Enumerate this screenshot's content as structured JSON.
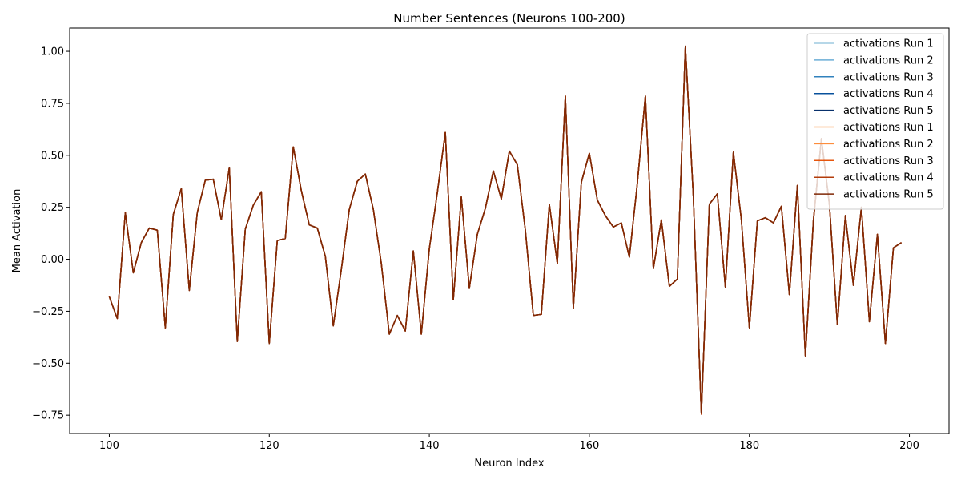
{
  "chart_data": {
    "type": "line",
    "title": "Number Sentences (Neurons 100-200)",
    "xlabel": "Neuron Index",
    "ylabel": "Mean Activation",
    "xlim": [
      95.05,
      204.95
    ],
    "ylim": [
      -0.838,
      1.112
    ],
    "xticks": [
      100,
      120,
      140,
      160,
      180,
      200
    ],
    "yticks": [
      -0.75,
      -0.5,
      -0.25,
      0.0,
      0.25,
      0.5,
      0.75,
      1.0
    ],
    "ytick_labels": [
      "−0.75",
      "−0.50",
      "−0.25",
      "0.00",
      "0.25",
      "0.50",
      "0.75",
      "1.00"
    ],
    "grid": false,
    "legend_position": "top-right",
    "x": [
      100,
      101,
      102,
      103,
      104,
      105,
      106,
      107,
      108,
      109,
      110,
      111,
      112,
      113,
      114,
      115,
      116,
      117,
      118,
      119,
      120,
      121,
      122,
      123,
      124,
      125,
      126,
      127,
      128,
      129,
      130,
      131,
      132,
      133,
      134,
      135,
      136,
      137,
      138,
      139,
      140,
      141,
      142,
      143,
      144,
      145,
      146,
      147,
      148,
      149,
      150,
      151,
      152,
      153,
      154,
      155,
      156,
      157,
      158,
      159,
      160,
      161,
      162,
      163,
      164,
      165,
      166,
      167,
      168,
      169,
      170,
      171,
      172,
      173,
      174,
      175,
      176,
      177,
      178,
      179,
      180,
      181,
      182,
      183,
      184,
      185,
      186,
      187,
      188,
      189,
      190,
      191,
      192,
      193,
      194,
      195,
      196,
      197,
      198,
      199
    ],
    "series": [
      {
        "name": "activations Run 1",
        "color": "#9ecae1",
        "values": [
          -0.18,
          -0.285,
          0.225,
          -0.065,
          0.08,
          0.15,
          0.14,
          -0.33,
          0.215,
          0.34,
          -0.15,
          0.225,
          0.38,
          0.385,
          0.19,
          0.44,
          -0.395,
          0.145,
          0.26,
          0.325,
          -0.405,
          0.09,
          0.1,
          0.54,
          0.33,
          0.165,
          0.15,
          0.015,
          -0.32,
          -0.05,
          0.24,
          0.375,
          0.41,
          0.24,
          -0.02,
          -0.36,
          -0.27,
          -0.345,
          0.04,
          -0.36,
          0.05,
          0.32,
          0.61,
          -0.195,
          0.3,
          -0.14,
          0.12,
          0.245,
          0.425,
          0.29,
          0.52,
          0.455,
          0.14,
          -0.27,
          -0.265,
          0.265,
          -0.02,
          0.785,
          -0.235,
          0.37,
          0.51,
          0.285,
          0.21,
          0.155,
          0.175,
          0.01,
          0.365,
          0.785,
          -0.045,
          0.19,
          -0.13,
          -0.095,
          1.025,
          0.3,
          -0.745,
          0.265,
          0.315,
          -0.135,
          0.515,
          0.19,
          -0.33,
          0.185,
          0.2,
          0.175,
          0.255,
          -0.17,
          0.355,
          -0.465,
          0.185,
          0.58,
          0.265,
          -0.315,
          0.21,
          -0.125,
          0.25,
          -0.3,
          0.12,
          -0.405,
          0.055,
          0.08
        ]
      },
      {
        "name": "activations Run 2",
        "color": "#6baed6",
        "values": [
          -0.18,
          -0.285,
          0.225,
          -0.065,
          0.08,
          0.15,
          0.14,
          -0.33,
          0.215,
          0.34,
          -0.15,
          0.225,
          0.38,
          0.385,
          0.19,
          0.44,
          -0.395,
          0.145,
          0.26,
          0.325,
          -0.405,
          0.09,
          0.1,
          0.54,
          0.33,
          0.165,
          0.15,
          0.015,
          -0.32,
          -0.05,
          0.24,
          0.375,
          0.41,
          0.24,
          -0.02,
          -0.36,
          -0.27,
          -0.345,
          0.04,
          -0.36,
          0.05,
          0.32,
          0.61,
          -0.195,
          0.3,
          -0.14,
          0.12,
          0.245,
          0.425,
          0.29,
          0.52,
          0.455,
          0.14,
          -0.27,
          -0.265,
          0.265,
          -0.02,
          0.785,
          -0.235,
          0.37,
          0.51,
          0.285,
          0.21,
          0.155,
          0.175,
          0.01,
          0.365,
          0.785,
          -0.045,
          0.19,
          -0.13,
          -0.095,
          1.025,
          0.3,
          -0.745,
          0.265,
          0.315,
          -0.135,
          0.515,
          0.19,
          -0.33,
          0.185,
          0.2,
          0.175,
          0.255,
          -0.17,
          0.355,
          -0.465,
          0.185,
          0.58,
          0.265,
          -0.315,
          0.21,
          -0.125,
          0.25,
          -0.3,
          0.12,
          -0.405,
          0.055,
          0.08
        ]
      },
      {
        "name": "activations Run 3",
        "color": "#3182bd",
        "values": [
          -0.18,
          -0.285,
          0.225,
          -0.065,
          0.08,
          0.15,
          0.14,
          -0.33,
          0.215,
          0.34,
          -0.15,
          0.225,
          0.38,
          0.385,
          0.19,
          0.44,
          -0.395,
          0.145,
          0.26,
          0.325,
          -0.405,
          0.09,
          0.1,
          0.54,
          0.33,
          0.165,
          0.15,
          0.015,
          -0.32,
          -0.05,
          0.24,
          0.375,
          0.41,
          0.24,
          -0.02,
          -0.36,
          -0.27,
          -0.345,
          0.04,
          -0.36,
          0.05,
          0.32,
          0.61,
          -0.195,
          0.3,
          -0.14,
          0.12,
          0.245,
          0.425,
          0.29,
          0.52,
          0.455,
          0.14,
          -0.27,
          -0.265,
          0.265,
          -0.02,
          0.785,
          -0.235,
          0.37,
          0.51,
          0.285,
          0.21,
          0.155,
          0.175,
          0.01,
          0.365,
          0.785,
          -0.045,
          0.19,
          -0.13,
          -0.095,
          1.025,
          0.3,
          -0.745,
          0.265,
          0.315,
          -0.135,
          0.515,
          0.19,
          -0.33,
          0.185,
          0.2,
          0.175,
          0.255,
          -0.17,
          0.355,
          -0.465,
          0.185,
          0.58,
          0.265,
          -0.315,
          0.21,
          -0.125,
          0.25,
          -0.3,
          0.12,
          -0.405,
          0.055,
          0.08
        ]
      },
      {
        "name": "activations Run 4",
        "color": "#08519c",
        "values": [
          -0.18,
          -0.285,
          0.225,
          -0.065,
          0.08,
          0.15,
          0.14,
          -0.33,
          0.215,
          0.34,
          -0.15,
          0.225,
          0.38,
          0.385,
          0.19,
          0.44,
          -0.395,
          0.145,
          0.26,
          0.325,
          -0.405,
          0.09,
          0.1,
          0.54,
          0.33,
          0.165,
          0.15,
          0.015,
          -0.32,
          -0.05,
          0.24,
          0.375,
          0.41,
          0.24,
          -0.02,
          -0.36,
          -0.27,
          -0.345,
          0.04,
          -0.36,
          0.05,
          0.32,
          0.61,
          -0.195,
          0.3,
          -0.14,
          0.12,
          0.245,
          0.425,
          0.29,
          0.52,
          0.455,
          0.14,
          -0.27,
          -0.265,
          0.265,
          -0.02,
          0.785,
          -0.235,
          0.37,
          0.51,
          0.285,
          0.21,
          0.155,
          0.175,
          0.01,
          0.365,
          0.785,
          -0.045,
          0.19,
          -0.13,
          -0.095,
          1.025,
          0.3,
          -0.745,
          0.265,
          0.315,
          -0.135,
          0.515,
          0.19,
          -0.33,
          0.185,
          0.2,
          0.175,
          0.255,
          -0.17,
          0.355,
          -0.465,
          0.185,
          0.58,
          0.265,
          -0.315,
          0.21,
          -0.125,
          0.25,
          -0.3,
          0.12,
          -0.405,
          0.055,
          0.08
        ]
      },
      {
        "name": "activations Run 5",
        "color": "#08306b",
        "values": [
          -0.18,
          -0.285,
          0.225,
          -0.065,
          0.08,
          0.15,
          0.14,
          -0.33,
          0.215,
          0.34,
          -0.15,
          0.225,
          0.38,
          0.385,
          0.19,
          0.44,
          -0.395,
          0.145,
          0.26,
          0.325,
          -0.405,
          0.09,
          0.1,
          0.54,
          0.33,
          0.165,
          0.15,
          0.015,
          -0.32,
          -0.05,
          0.24,
          0.375,
          0.41,
          0.24,
          -0.02,
          -0.36,
          -0.27,
          -0.345,
          0.04,
          -0.36,
          0.05,
          0.32,
          0.61,
          -0.195,
          0.3,
          -0.14,
          0.12,
          0.245,
          0.425,
          0.29,
          0.52,
          0.455,
          0.14,
          -0.27,
          -0.265,
          0.265,
          -0.02,
          0.785,
          -0.235,
          0.37,
          0.51,
          0.285,
          0.21,
          0.155,
          0.175,
          0.01,
          0.365,
          0.785,
          -0.045,
          0.19,
          -0.13,
          -0.095,
          1.025,
          0.3,
          -0.745,
          0.265,
          0.315,
          -0.135,
          0.515,
          0.19,
          -0.33,
          0.185,
          0.2,
          0.175,
          0.255,
          -0.17,
          0.355,
          -0.465,
          0.185,
          0.58,
          0.265,
          -0.315,
          0.21,
          -0.125,
          0.25,
          -0.3,
          0.12,
          -0.405,
          0.055,
          0.08
        ]
      },
      {
        "name": "activations Run 1",
        "color": "#fdae6b",
        "values": [
          -0.18,
          -0.285,
          0.225,
          -0.065,
          0.08,
          0.15,
          0.14,
          -0.33,
          0.215,
          0.34,
          -0.15,
          0.225,
          0.38,
          0.385,
          0.19,
          0.44,
          -0.395,
          0.145,
          0.26,
          0.325,
          -0.405,
          0.09,
          0.1,
          0.54,
          0.33,
          0.165,
          0.15,
          0.015,
          -0.32,
          -0.05,
          0.24,
          0.375,
          0.41,
          0.24,
          -0.02,
          -0.36,
          -0.27,
          -0.345,
          0.04,
          -0.36,
          0.05,
          0.32,
          0.61,
          -0.195,
          0.3,
          -0.14,
          0.12,
          0.245,
          0.425,
          0.29,
          0.52,
          0.455,
          0.14,
          -0.27,
          -0.265,
          0.265,
          -0.02,
          0.785,
          -0.235,
          0.37,
          0.51,
          0.285,
          0.21,
          0.155,
          0.175,
          0.01,
          0.365,
          0.785,
          -0.045,
          0.19,
          -0.13,
          -0.095,
          1.025,
          0.3,
          -0.745,
          0.265,
          0.315,
          -0.135,
          0.515,
          0.19,
          -0.33,
          0.185,
          0.2,
          0.175,
          0.255,
          -0.17,
          0.355,
          -0.465,
          0.185,
          0.58,
          0.265,
          -0.315,
          0.21,
          -0.125,
          0.25,
          -0.3,
          0.12,
          -0.405,
          0.055,
          0.08
        ]
      },
      {
        "name": "activations Run 2",
        "color": "#fd8d3c",
        "values": [
          -0.18,
          -0.285,
          0.225,
          -0.065,
          0.08,
          0.15,
          0.14,
          -0.33,
          0.215,
          0.34,
          -0.15,
          0.225,
          0.38,
          0.385,
          0.19,
          0.44,
          -0.395,
          0.145,
          0.26,
          0.325,
          -0.405,
          0.09,
          0.1,
          0.54,
          0.33,
          0.165,
          0.15,
          0.015,
          -0.32,
          -0.05,
          0.24,
          0.375,
          0.41,
          0.24,
          -0.02,
          -0.36,
          -0.27,
          -0.345,
          0.04,
          -0.36,
          0.05,
          0.32,
          0.61,
          -0.195,
          0.3,
          -0.14,
          0.12,
          0.245,
          0.425,
          0.29,
          0.52,
          0.455,
          0.14,
          -0.27,
          -0.265,
          0.265,
          -0.02,
          0.785,
          -0.235,
          0.37,
          0.51,
          0.285,
          0.21,
          0.155,
          0.175,
          0.01,
          0.365,
          0.785,
          -0.045,
          0.19,
          -0.13,
          -0.095,
          1.025,
          0.3,
          -0.745,
          0.265,
          0.315,
          -0.135,
          0.515,
          0.19,
          -0.33,
          0.185,
          0.2,
          0.175,
          0.255,
          -0.17,
          0.355,
          -0.465,
          0.185,
          0.58,
          0.265,
          -0.315,
          0.21,
          -0.125,
          0.25,
          -0.3,
          0.12,
          -0.405,
          0.055,
          0.08
        ]
      },
      {
        "name": "activations Run 3",
        "color": "#e6550d",
        "values": [
          -0.18,
          -0.285,
          0.225,
          -0.065,
          0.08,
          0.15,
          0.14,
          -0.33,
          0.215,
          0.34,
          -0.15,
          0.225,
          0.38,
          0.385,
          0.19,
          0.44,
          -0.395,
          0.145,
          0.26,
          0.325,
          -0.405,
          0.09,
          0.1,
          0.54,
          0.33,
          0.165,
          0.15,
          0.015,
          -0.32,
          -0.05,
          0.24,
          0.375,
          0.41,
          0.24,
          -0.02,
          -0.36,
          -0.27,
          -0.345,
          0.04,
          -0.36,
          0.05,
          0.32,
          0.61,
          -0.195,
          0.3,
          -0.14,
          0.12,
          0.245,
          0.425,
          0.29,
          0.52,
          0.455,
          0.14,
          -0.27,
          -0.265,
          0.265,
          -0.02,
          0.785,
          -0.235,
          0.37,
          0.51,
          0.285,
          0.21,
          0.155,
          0.175,
          0.01,
          0.365,
          0.785,
          -0.045,
          0.19,
          -0.13,
          -0.095,
          1.025,
          0.3,
          -0.745,
          0.265,
          0.315,
          -0.135,
          0.515,
          0.19,
          -0.33,
          0.185,
          0.2,
          0.175,
          0.255,
          -0.17,
          0.355,
          -0.465,
          0.185,
          0.58,
          0.265,
          -0.315,
          0.21,
          -0.125,
          0.25,
          -0.3,
          0.12,
          -0.405,
          0.055,
          0.08
        ]
      },
      {
        "name": "activations Run 4",
        "color": "#b33c0b",
        "values": [
          -0.18,
          -0.285,
          0.225,
          -0.065,
          0.08,
          0.15,
          0.14,
          -0.33,
          0.215,
          0.34,
          -0.15,
          0.225,
          0.38,
          0.385,
          0.19,
          0.44,
          -0.395,
          0.145,
          0.26,
          0.325,
          -0.405,
          0.09,
          0.1,
          0.54,
          0.33,
          0.165,
          0.15,
          0.015,
          -0.32,
          -0.05,
          0.24,
          0.375,
          0.41,
          0.24,
          -0.02,
          -0.36,
          -0.27,
          -0.345,
          0.04,
          -0.36,
          0.05,
          0.32,
          0.61,
          -0.195,
          0.3,
          -0.14,
          0.12,
          0.245,
          0.425,
          0.29,
          0.52,
          0.455,
          0.14,
          -0.27,
          -0.265,
          0.265,
          -0.02,
          0.785,
          -0.235,
          0.37,
          0.51,
          0.285,
          0.21,
          0.155,
          0.175,
          0.01,
          0.365,
          0.785,
          -0.045,
          0.19,
          -0.13,
          -0.095,
          1.025,
          0.3,
          -0.745,
          0.265,
          0.315,
          -0.135,
          0.515,
          0.19,
          -0.33,
          0.185,
          0.2,
          0.175,
          0.255,
          -0.17,
          0.355,
          -0.465,
          0.185,
          0.58,
          0.265,
          -0.315,
          0.21,
          -0.125,
          0.25,
          -0.3,
          0.12,
          -0.405,
          0.055,
          0.08
        ]
      },
      {
        "name": "activations Run 5",
        "color": "#7f2704",
        "values": [
          -0.18,
          -0.285,
          0.225,
          -0.065,
          0.08,
          0.15,
          0.14,
          -0.33,
          0.215,
          0.34,
          -0.15,
          0.225,
          0.38,
          0.385,
          0.19,
          0.44,
          -0.395,
          0.145,
          0.26,
          0.325,
          -0.405,
          0.09,
          0.1,
          0.54,
          0.33,
          0.165,
          0.15,
          0.015,
          -0.32,
          -0.05,
          0.24,
          0.375,
          0.41,
          0.24,
          -0.02,
          -0.36,
          -0.27,
          -0.345,
          0.04,
          -0.36,
          0.05,
          0.32,
          0.61,
          -0.195,
          0.3,
          -0.14,
          0.12,
          0.245,
          0.425,
          0.29,
          0.52,
          0.455,
          0.14,
          -0.27,
          -0.265,
          0.265,
          -0.02,
          0.785,
          -0.235,
          0.37,
          0.51,
          0.285,
          0.21,
          0.155,
          0.175,
          0.01,
          0.365,
          0.785,
          -0.045,
          0.19,
          -0.13,
          -0.095,
          1.025,
          0.3,
          -0.74,
          0.265,
          0.315,
          -0.135,
          0.515,
          0.19,
          -0.33,
          0.185,
          0.2,
          0.175,
          0.255,
          -0.17,
          0.355,
          -0.465,
          0.185,
          0.58,
          0.265,
          -0.315,
          0.21,
          -0.125,
          0.25,
          -0.3,
          0.12,
          -0.405,
          0.055,
          0.08
        ]
      }
    ]
  }
}
